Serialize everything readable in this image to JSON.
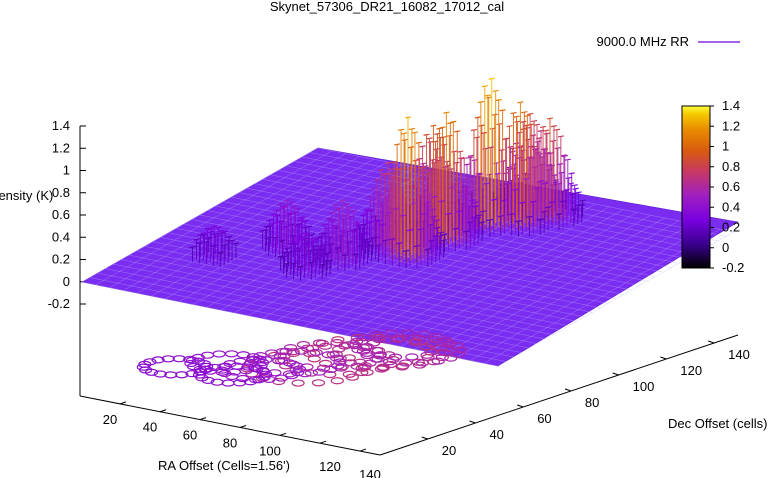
{
  "chart_data": {
    "type": "surface",
    "title": "Skynet_57306_DR21_16082_17012_cal",
    "xlabel": "RA Offset (Cells=1.56')",
    "ylabel": "Dec Offset (cells)",
    "zlabel": "Intensity (K)",
    "xticks": [
      "20",
      "40",
      "60",
      "80",
      "100",
      "120",
      "140"
    ],
    "yticks": [
      "20",
      "40",
      "60",
      "80",
      "100",
      "120",
      "140"
    ],
    "zticks": [
      "1.4",
      "1.2",
      "1",
      "0.8",
      "0.6",
      "0.4",
      "0.2",
      "0",
      "-0.2"
    ],
    "xlim": [
      0,
      150
    ],
    "ylim": [
      0,
      150
    ],
    "zlim": [
      -0.2,
      1.4
    ],
    "colorbar": {
      "ticks": [
        "1.4",
        "1.2",
        "1",
        "0.8",
        "0.6",
        "0.4",
        "0.2",
        "0",
        "-0.2"
      ],
      "range": [
        -0.2,
        1.4
      ],
      "colors": [
        "#000000",
        "#3a0090",
        "#7a00e0",
        "#a020c0",
        "#c83a60",
        "#d85a10",
        "#e88a00",
        "#f5c800",
        "#ffff40"
      ]
    },
    "series": [
      {
        "name": "9000.0 MHz RR",
        "color": "#8a2be2",
        "baseline": 0.0,
        "peaks": [
          {
            "x": 75,
            "y": 75,
            "z": 1.25
          },
          {
            "x": 78,
            "y": 95,
            "z": 1.15
          },
          {
            "x": 82,
            "y": 115,
            "z": 1.32
          },
          {
            "x": 90,
            "y": 120,
            "z": 1.1
          },
          {
            "x": 70,
            "y": 100,
            "z": 0.95
          },
          {
            "x": 65,
            "y": 80,
            "z": 0.75
          },
          {
            "x": 60,
            "y": 60,
            "z": 0.55
          },
          {
            "x": 85,
            "y": 135,
            "z": 0.85
          },
          {
            "x": 95,
            "y": 130,
            "z": 0.9
          },
          {
            "x": 40,
            "y": 60,
            "z": 0.45
          },
          {
            "x": 55,
            "y": 45,
            "z": 0.35
          },
          {
            "x": 25,
            "y": 40,
            "z": 0.3
          }
        ]
      }
    ]
  }
}
